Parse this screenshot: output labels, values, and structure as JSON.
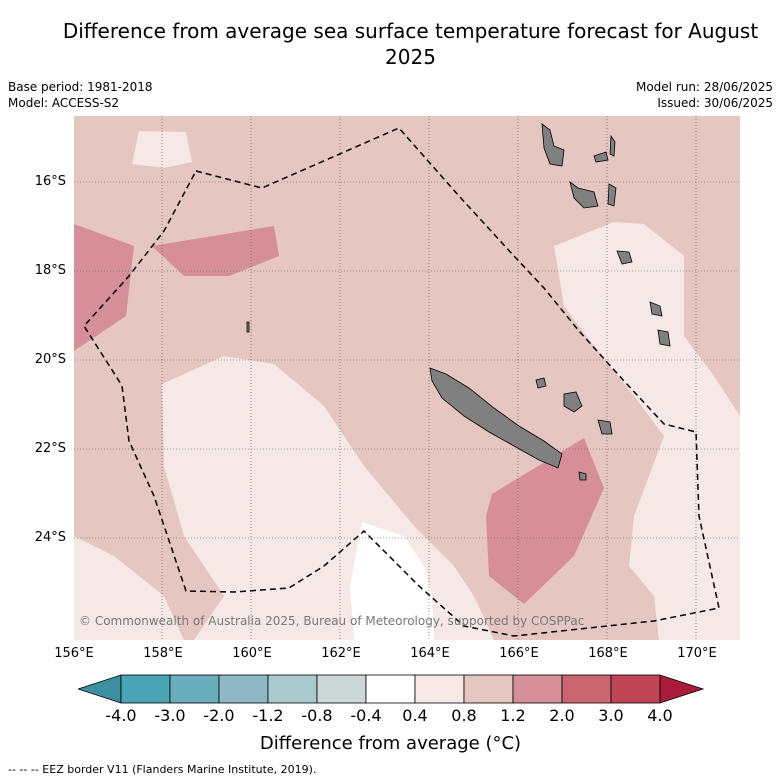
{
  "title": "Difference from average sea surface temperature forecast for August 2025",
  "meta_left": [
    "Base period: 1981-2018",
    "Model: ACCESS-S2"
  ],
  "meta_right": [
    "Model run: 28/06/2025",
    "Issued: 30/06/2025"
  ],
  "lat_labels": [
    "16°S",
    "18°S",
    "20°S",
    "22°S",
    "24°S"
  ],
  "lon_labels": [
    "156°E",
    "158°E",
    "160°E",
    "162°E",
    "164°E",
    "166°E",
    "168°E",
    "170°E"
  ],
  "credit": "© Commonwealth of Australia 2025, Bureau of Meteorology, supported by COSPPac",
  "colorbar": {
    "ticks": [
      "-4.0",
      "-3.0",
      "-2.0",
      "-1.2",
      "-0.8",
      "-0.4",
      "0.4",
      "0.8",
      "1.2",
      "2.0",
      "3.0",
      "4.0"
    ],
    "colors": [
      "#3d8fa0",
      "#4aa4b4",
      "#6aaebd",
      "#8eb9c4",
      "#a9c9cc",
      "#ccd8d8",
      "#ffffff",
      "#f5e8e6",
      "#e6c6c1",
      "#d68f98",
      "#cb6572",
      "#bf4656",
      "#a81c3a"
    ],
    "label": "Difference from average (°C)"
  },
  "legend_line": "-- -- -- EEZ border V11 (Flanders Marine Institute, 2019)."
}
